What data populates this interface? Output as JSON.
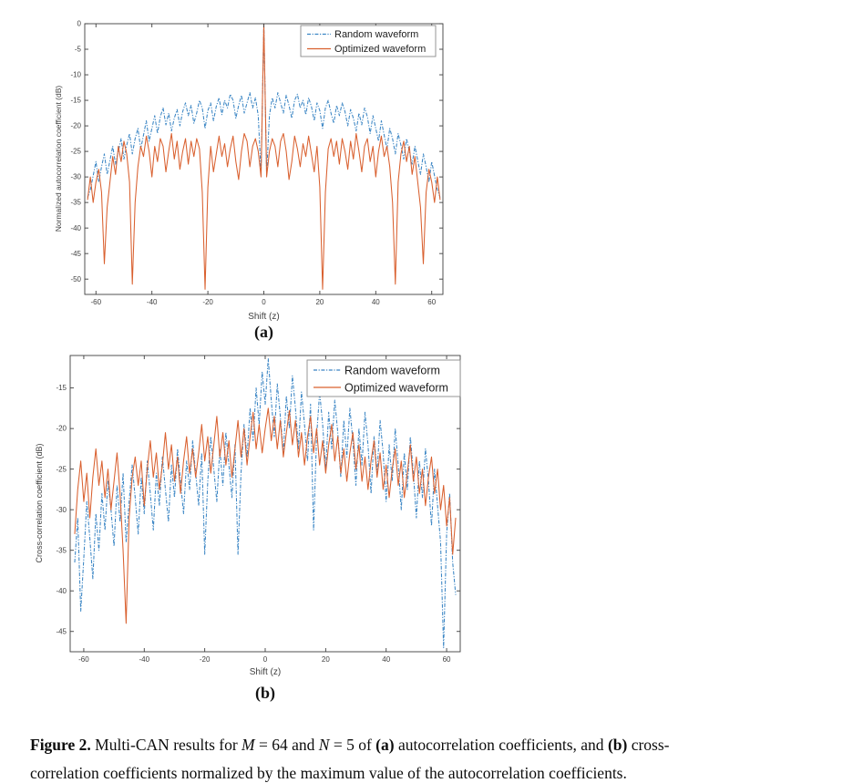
{
  "figure": {
    "sublabel_a": "(a)",
    "sublabel_b": "(b)"
  },
  "caption": {
    "lines": [
      [
        {
          "text": "Figure 2.",
          "bold": true
        },
        {
          "text": " Multi-CAN results for "
        },
        {
          "text": "M",
          "italic": true
        },
        {
          "text": " = 64 and "
        },
        {
          "text": "N",
          "italic": true
        },
        {
          "text": " = 5 of "
        },
        {
          "text": "(a)",
          "bold": true
        },
        {
          "text": " autocorrelation coefficients, and "
        },
        {
          "text": "(b)",
          "bold": true
        },
        {
          "text": " cross-"
        }
      ],
      [
        {
          "text": "correlation coefficients normalized by the maximum value of the autocorrelation coefficients."
        }
      ]
    ]
  },
  "chart_data": [
    {
      "id": "a",
      "type": "line",
      "title": "",
      "xlabel": "Shift (z)",
      "ylabel": "Normalized autocorrelation coefficient (dB)",
      "xlim": [
        -64,
        64
      ],
      "ylim": [
        -53,
        0
      ],
      "xticks": [
        -60,
        -40,
        -20,
        0,
        20,
        40,
        60
      ],
      "yticks": [
        0,
        -5,
        -10,
        -15,
        -20,
        -25,
        -30,
        -35,
        -40,
        -45,
        -50
      ],
      "grid": false,
      "legend_position": "top-right",
      "axis_color": "#3f3f3f",
      "series": [
        {
          "name": "Random waveform",
          "color": "#3A85C4",
          "line_style": "dash-dot",
          "x_start": 0,
          "x_step": 1,
          "mirror": true,
          "values": [
            0,
            -29.5,
            -18,
            -14.5,
            -16.5,
            -13.5,
            -15.5,
            -17.5,
            -14,
            -16,
            -18.5,
            -15,
            -13.8,
            -16.5,
            -15,
            -17.8,
            -14.5,
            -16.2,
            -19,
            -15.5,
            -17,
            -20.5,
            -16.5,
            -15,
            -17.5,
            -19.5,
            -16,
            -18,
            -15.5,
            -17.2,
            -20,
            -16.8,
            -18.5,
            -21,
            -17.5,
            -19.8,
            -16.5,
            -18.2,
            -21.5,
            -18,
            -20.5,
            -23,
            -19,
            -21.8,
            -24.5,
            -20.5,
            -22.5,
            -25.5,
            -21.5,
            -23.8,
            -26.5,
            -22.5,
            -25,
            -27.5,
            -24,
            -26.8,
            -29.5,
            -25.5,
            -28,
            -31,
            -27,
            -29.8,
            -32.5,
            -34
          ]
        },
        {
          "name": "Optimized waveform",
          "color": "#D9602F",
          "line_style": "solid",
          "x_start": 0,
          "x_step": 1,
          "mirror": true,
          "values": [
            0,
            -30,
            -25,
            -22.5,
            -24,
            -28,
            -23,
            -21.5,
            -25,
            -30.5,
            -27,
            -22,
            -24.5,
            -28,
            -23.5,
            -26,
            -22,
            -25.5,
            -29,
            -24,
            -32,
            -52,
            -33,
            -24.5,
            -22.5,
            -26,
            -23,
            -27.5,
            -22.5,
            -25,
            -28.5,
            -23,
            -26.5,
            -21.5,
            -25,
            -29,
            -24,
            -22.5,
            -27,
            -24,
            -30,
            -25,
            -22,
            -26,
            -24,
            -28,
            -35,
            -51,
            -31,
            -25.5,
            -23,
            -27,
            -24,
            -29.5,
            -26,
            -31,
            -36,
            -47,
            -33,
            -28.5,
            -31,
            -35,
            -30,
            -34.5
          ]
        }
      ]
    },
    {
      "id": "b",
      "type": "line",
      "title": "",
      "xlabel": "Shift (z)",
      "ylabel": "Cross-correlation coefficient (dB)",
      "xlim": [
        -64.5,
        64.5
      ],
      "ylim": [
        -47.5,
        -11
      ],
      "xticks": [
        -60,
        -40,
        -20,
        0,
        20,
        40,
        60
      ],
      "yticks": [
        -15,
        -20,
        -25,
        -30,
        -35,
        -40,
        -45
      ],
      "grid": false,
      "legend_position": "top-right",
      "axis_color": "#3f3f3f",
      "series": [
        {
          "name": "Random waveform",
          "color": "#3A85C4",
          "line_style": "dash-dot",
          "x_start": -63,
          "x_step": 1,
          "mirror": false,
          "values": [
            -36.5,
            -31,
            -42.5,
            -36,
            -29,
            -33.5,
            -38.5,
            -30.5,
            -35,
            -28,
            -32.5,
            -26.5,
            -30,
            -34.5,
            -27,
            -31.5,
            -25.5,
            -34,
            -29,
            -24.5,
            -28.5,
            -33,
            -26,
            -30.5,
            -24,
            -28,
            -32.5,
            -25.5,
            -29.5,
            -23.5,
            -27.5,
            -31.5,
            -24.5,
            -28.5,
            -22.5,
            -26.5,
            -30.5,
            -24,
            -27.5,
            -21.5,
            -25.5,
            -29.5,
            -23,
            -35.5,
            -26.5,
            -21,
            -25,
            -29,
            -22.5,
            -27,
            -20.5,
            -24.5,
            -28.5,
            -22,
            -35.5,
            -25.5,
            -19.5,
            -23.5,
            -17.5,
            -21.5,
            -15,
            -19.5,
            -13,
            -17,
            -11.4,
            -16.5,
            -21,
            -14.5,
            -18.5,
            -23,
            -16,
            -20,
            -13.5,
            -17.5,
            -22.5,
            -15.5,
            -19.5,
            -24,
            -17,
            -32.5,
            -21,
            -15.5,
            -19.5,
            -25,
            -18,
            -22.5,
            -16.5,
            -20.5,
            -26,
            -19,
            -23.5,
            -17.5,
            -21.5,
            -27,
            -20,
            -24.5,
            -18,
            -22,
            -28,
            -21,
            -25.5,
            -19,
            -23,
            -29,
            -22,
            -26.5,
            -20,
            -24.5,
            -30,
            -23,
            -27.5,
            -21,
            -25.5,
            -31,
            -24,
            -28.5,
            -22.5,
            -26.5,
            -32,
            -25,
            -29.5,
            -34,
            -47,
            -33,
            -28,
            -36.5,
            -40.5
          ]
        },
        {
          "name": "Optimized waveform",
          "color": "#D9602F",
          "line_style": "solid",
          "x_start": -63,
          "x_step": 1,
          "mirror": false,
          "values": [
            -33,
            -27.5,
            -24,
            -29,
            -25.5,
            -31,
            -26,
            -22.5,
            -27,
            -24,
            -28.5,
            -25,
            -30,
            -26.5,
            -23,
            -28,
            -35,
            -44,
            -31,
            -26,
            -23.5,
            -27,
            -24,
            -29.5,
            -25,
            -21.5,
            -26,
            -23,
            -27.5,
            -24.5,
            -20.5,
            -25,
            -22,
            -26.5,
            -23.5,
            -28,
            -24,
            -21,
            -25.5,
            -22.5,
            -26,
            -23,
            -19.5,
            -24,
            -21,
            -25.5,
            -22,
            -18.5,
            -23.5,
            -20.5,
            -24.5,
            -21.5,
            -26,
            -22.5,
            -19,
            -23.5,
            -20,
            -24.5,
            -21,
            -18,
            -22.5,
            -19.5,
            -23,
            -20,
            -17.5,
            -21.5,
            -18.5,
            -22.5,
            -19,
            -23.5,
            -20.5,
            -17.8,
            -22,
            -19,
            -23.5,
            -20.5,
            -24.5,
            -21,
            -18.5,
            -23,
            -20,
            -24.5,
            -21.5,
            -25.5,
            -22,
            -19.5,
            -24,
            -21,
            -25.5,
            -22.5,
            -26.5,
            -23,
            -20.5,
            -25,
            -22,
            -26.5,
            -23.5,
            -27.5,
            -24,
            -21.5,
            -26,
            -23,
            -27.5,
            -24.5,
            -28.5,
            -25,
            -22.5,
            -27,
            -24,
            -28.5,
            -25.5,
            -22,
            -26.5,
            -23.5,
            -28,
            -25,
            -29.5,
            -26,
            -23.5,
            -28,
            -25,
            -30,
            -27,
            -32,
            -28.5,
            -35.5,
            -31
          ]
        }
      ]
    }
  ]
}
